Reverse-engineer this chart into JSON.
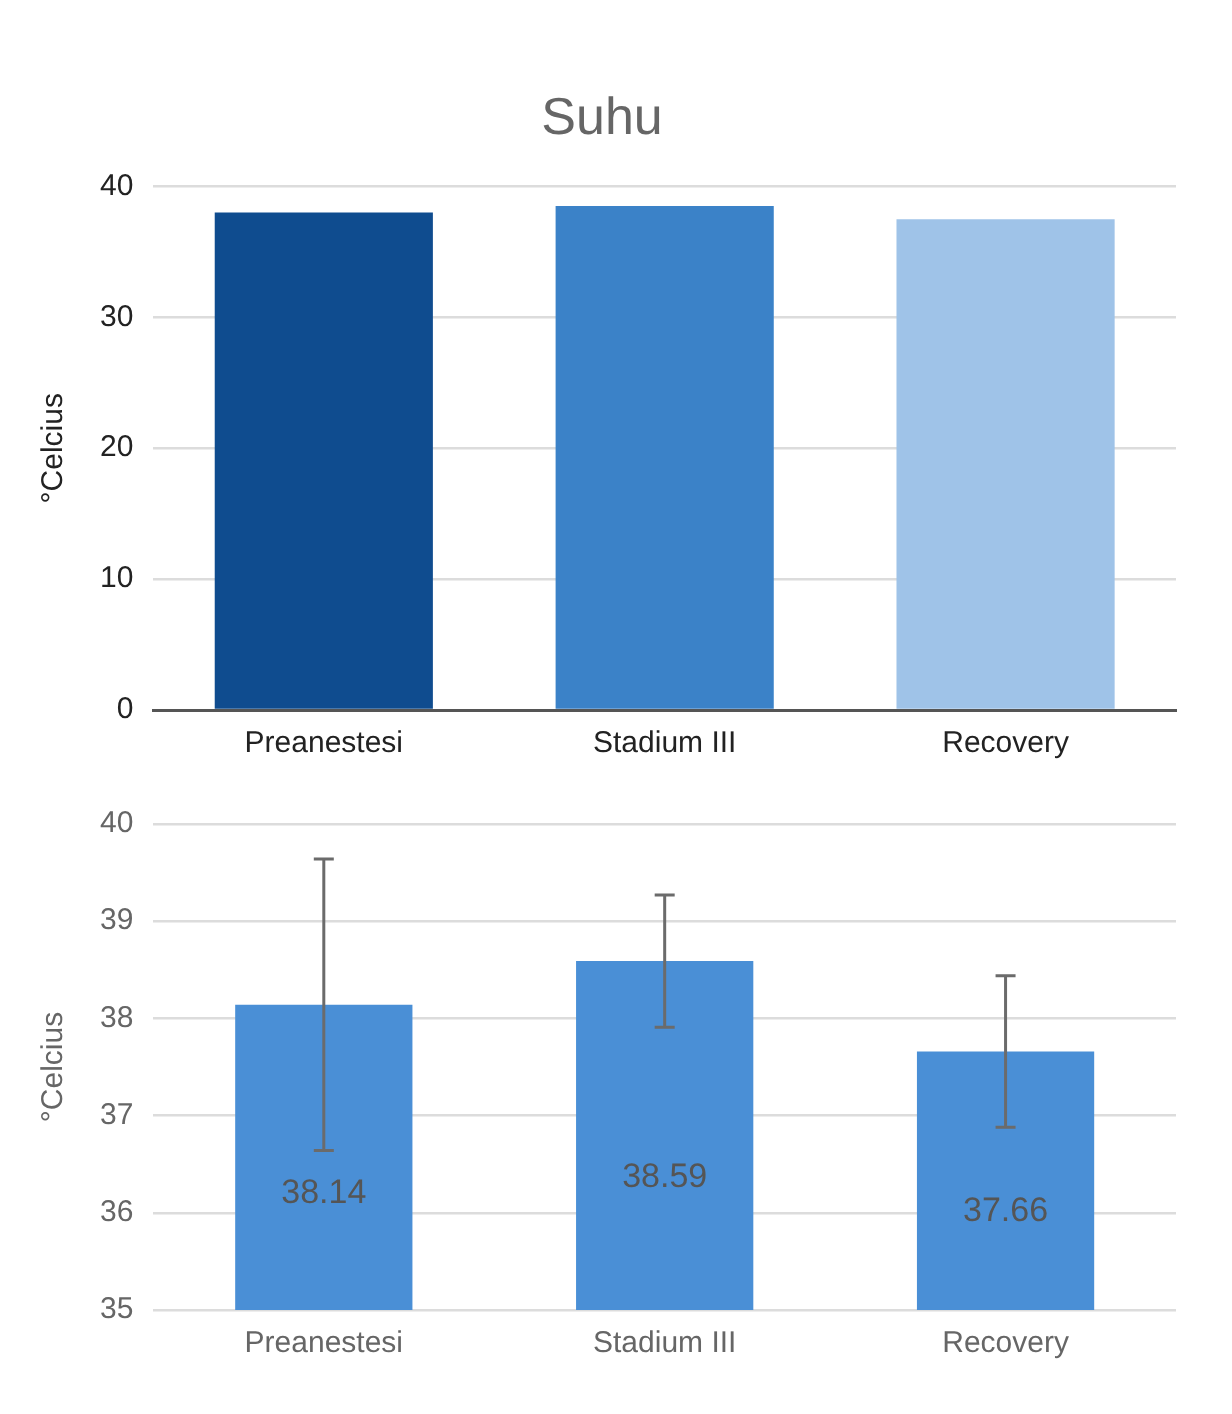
{
  "chart_data": [
    {
      "type": "bar",
      "title": "Suhu",
      "ylabel": "°Celcius",
      "categories": [
        "Preanestesi",
        "Stadium III",
        "Recovery"
      ],
      "values": [
        38,
        38.5,
        37.5
      ],
      "colors": [
        "#0f4c8f",
        "#3b82c8",
        "#9fc3e8"
      ],
      "ylim": [
        0,
        40
      ],
      "yticks": [
        0,
        10,
        20,
        30,
        40
      ],
      "grid": "y",
      "legend": false
    },
    {
      "type": "bar",
      "ylabel": "°Celcius",
      "categories": [
        "Preanestesi",
        "Stadium III",
        "Recovery"
      ],
      "values": [
        38.14,
        38.59,
        37.66
      ],
      "errors": [
        1.5,
        0.68,
        0.78
      ],
      "color": "#4a8fd6",
      "ylim": [
        35,
        40
      ],
      "yticks": [
        35,
        36,
        37,
        38,
        39,
        40
      ],
      "grid": "y",
      "data_labels": true,
      "legend": false
    }
  ]
}
